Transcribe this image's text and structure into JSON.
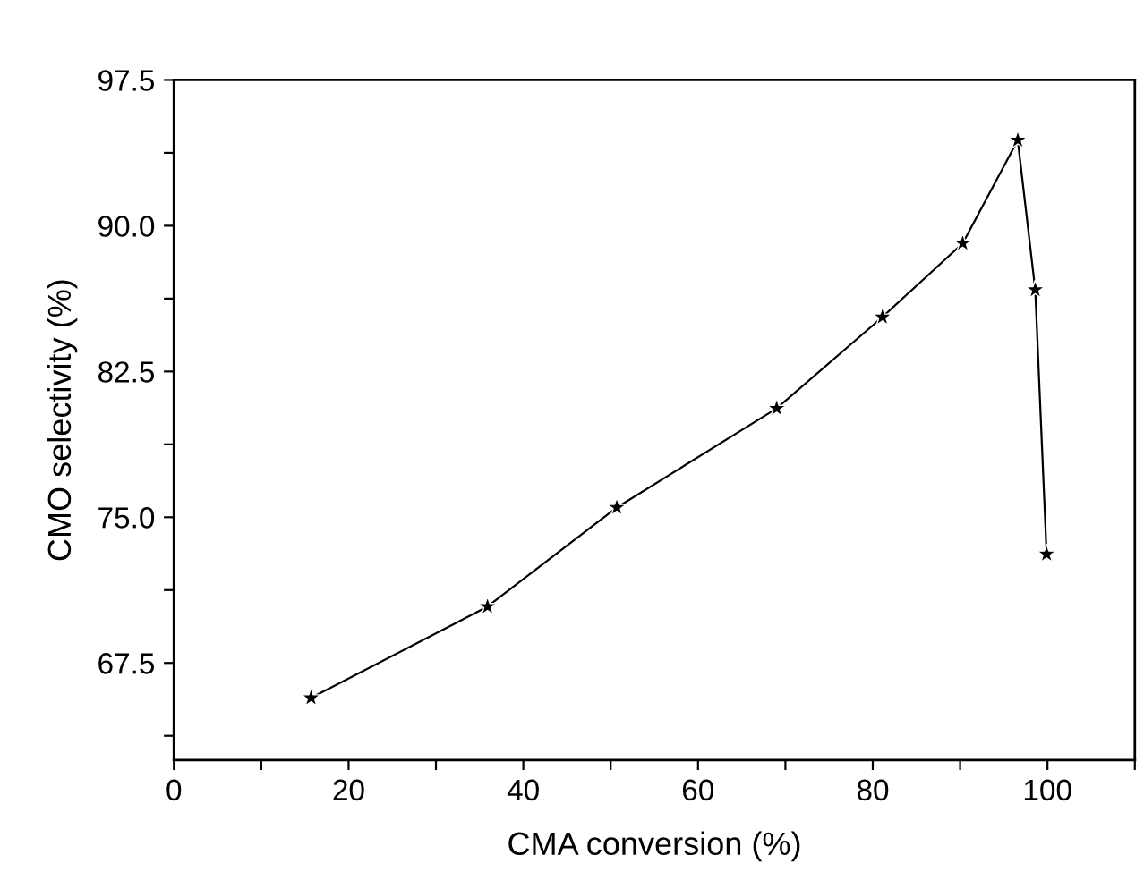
{
  "chart_data": {
    "type": "line",
    "xlabel": "CMA conversion (%)",
    "ylabel": "CMO selectivity (%)",
    "x": [
      15.7,
      35.9,
      50.7,
      69.0,
      81.1,
      90.3,
      96.6,
      98.6,
      99.9
    ],
    "values": [
      65.7,
      70.4,
      75.5,
      80.6,
      85.3,
      89.1,
      94.4,
      86.7,
      73.1
    ],
    "color": "#000000",
    "marker": "star",
    "line_style": "solid",
    "grid": false,
    "legend": false,
    "xlim": [
      0,
      110
    ],
    "ylim": [
      62.5,
      97.5
    ],
    "xticks": [
      0,
      {
        "value": 10,
        "label": null
      },
      20,
      {
        "value": 30,
        "label": null
      },
      40,
      {
        "value": 50,
        "label": null
      },
      60,
      {
        "value": 70,
        "label": null
      },
      80,
      {
        "value": 90,
        "label": null
      },
      100,
      {
        "value": 110,
        "label": null
      }
    ],
    "yticks": [
      {
        "value": 63.75,
        "label": null
      },
      67.5,
      {
        "value": 71.25,
        "label": null
      },
      {
        "value": 75,
        "label": "75.0"
      },
      {
        "value": 78.75,
        "label": null
      },
      82.5,
      {
        "value": 86.25,
        "label": null
      },
      {
        "value": 90,
        "label": "90.0"
      },
      {
        "value": 93.75,
        "label": null
      },
      97.5
    ]
  }
}
